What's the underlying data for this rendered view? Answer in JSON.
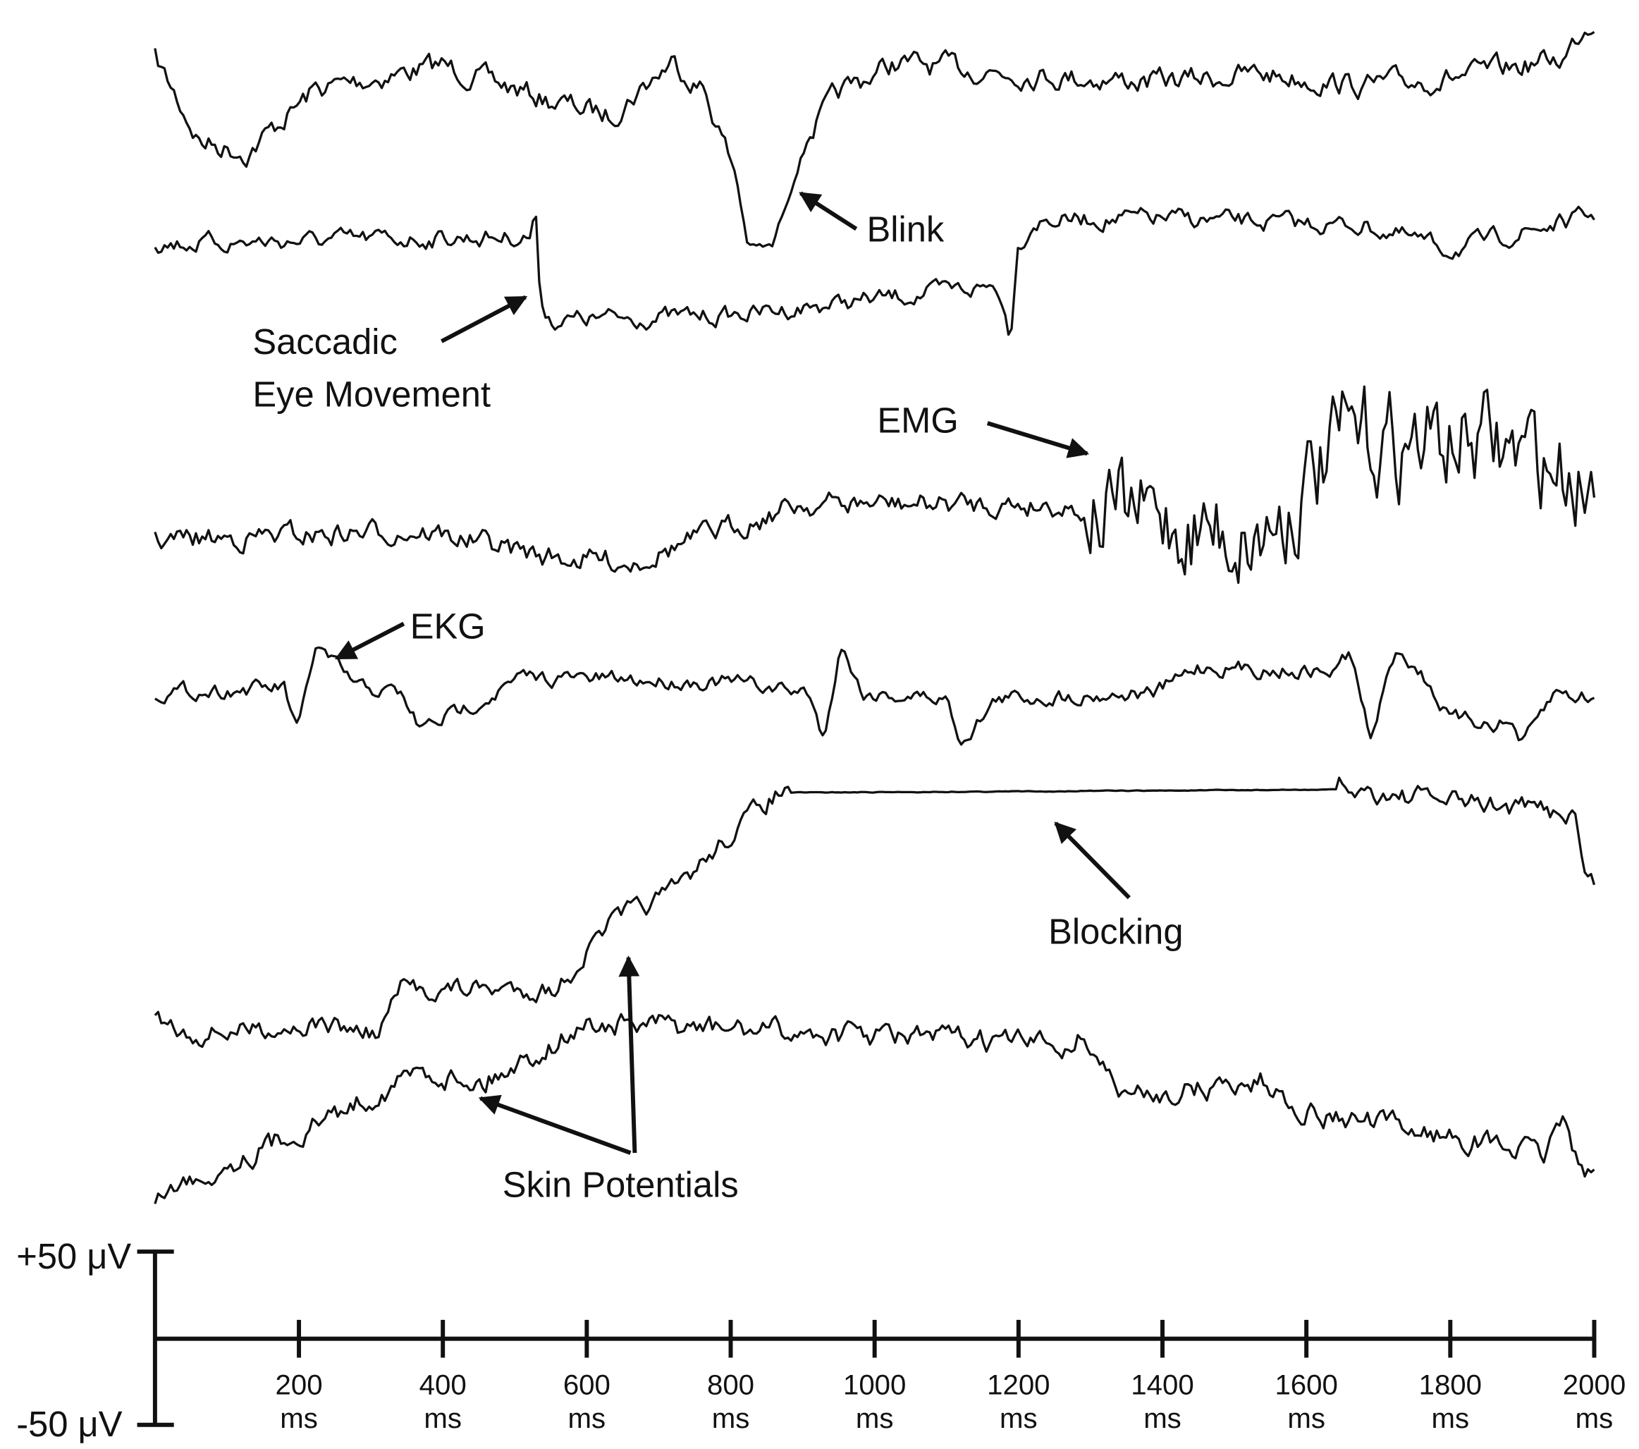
{
  "annotations": {
    "blink": "Blink",
    "saccade_line1": "Saccadic",
    "saccade_line2": "Eye Movement",
    "emg": "EMG",
    "ekg": "EKG",
    "blocking": "Blocking",
    "skin": "Skin Potentials"
  },
  "scale": {
    "top": "+50 μV",
    "bottom": "-50 μV"
  },
  "time_axis": {
    "ticks": [
      {
        "value": "200",
        "unit": "ms"
      },
      {
        "value": "400",
        "unit": "ms"
      },
      {
        "value": "600",
        "unit": "ms"
      },
      {
        "value": "800",
        "unit": "ms"
      },
      {
        "value": "1000",
        "unit": "ms"
      },
      {
        "value": "1200",
        "unit": "ms"
      },
      {
        "value": "1400",
        "unit": "ms"
      },
      {
        "value": "1600",
        "unit": "ms"
      },
      {
        "value": "1800",
        "unit": "ms"
      },
      {
        "value": "2000",
        "unit": "ms"
      }
    ]
  }
}
